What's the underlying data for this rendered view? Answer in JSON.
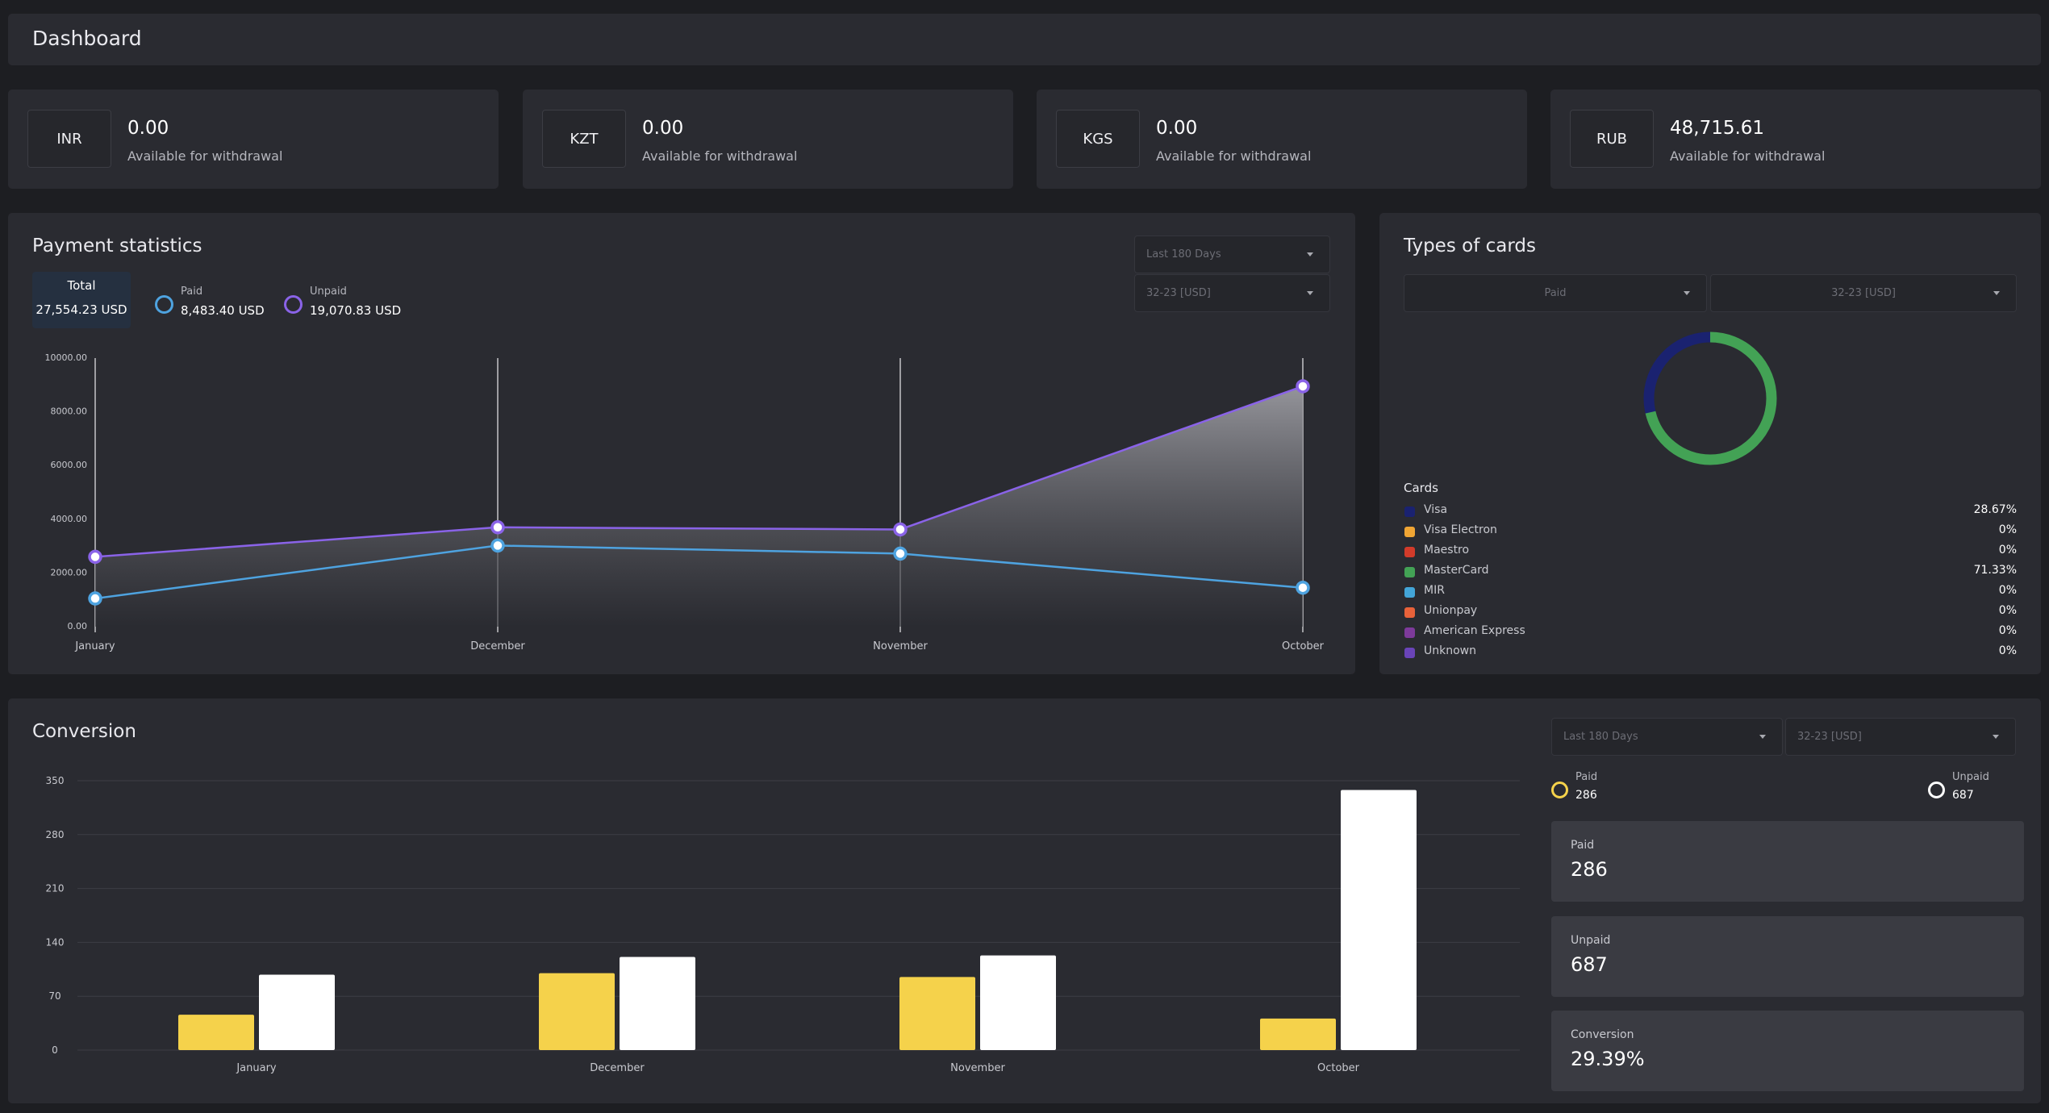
{
  "header": {
    "title": "Dashboard"
  },
  "balances": [
    {
      "code": "INR",
      "amount": "0.00",
      "label": "Available for withdrawal"
    },
    {
      "code": "KZT",
      "amount": "0.00",
      "label": "Available for withdrawal"
    },
    {
      "code": "KGS",
      "amount": "0.00",
      "label": "Available for withdrawal"
    },
    {
      "code": "RUB",
      "amount": "48,715.61",
      "label": "Available for withdrawal"
    }
  ],
  "payment_stats": {
    "title": "Payment statistics",
    "period_select": "Last 180 Days",
    "terminal_select": "32-23 [USD]",
    "total_label": "Total",
    "total_value": "27,554.23 USD",
    "paid_label": "Paid",
    "paid_value": "8,483.40 USD",
    "unpaid_label": "Unpaid",
    "unpaid_value": "19,070.83 USD",
    "paid_color": "#4ea3e0",
    "unpaid_color": "#8a63e8"
  },
  "card_types": {
    "title": "Types of cards",
    "status_select": "Paid",
    "terminal_select": "32-23 [USD]",
    "list_label": "Cards",
    "items": [
      {
        "name": "Visa",
        "percent": "28.67%",
        "value": 28.67,
        "color": "#1a2270"
      },
      {
        "name": "Visa Electron",
        "percent": "0%",
        "value": 0,
        "color": "#f0a534"
      },
      {
        "name": "Maestro",
        "percent": "0%",
        "value": 0,
        "color": "#d23b2a"
      },
      {
        "name": "MasterCard",
        "percent": "71.33%",
        "value": 71.33,
        "color": "#43a255"
      },
      {
        "name": "MIR",
        "percent": "0%",
        "value": 0,
        "color": "#43a5d8"
      },
      {
        "name": "Unionpay",
        "percent": "0%",
        "value": 0,
        "color": "#e8623a"
      },
      {
        "name": "American Express",
        "percent": "0%",
        "value": 0,
        "color": "#7d3a9a"
      },
      {
        "name": "Unknown",
        "percent": "0%",
        "value": 0,
        "color": "#6a44b8"
      }
    ]
  },
  "conversion": {
    "title": "Conversion",
    "period_select": "Last 180 Days",
    "terminal_select": "32-23 [USD]",
    "paid_label": "Paid",
    "paid_value": "286",
    "unpaid_label": "Unpaid",
    "unpaid_value": "687",
    "paid_color": "#f5d24b",
    "unpaid_color": "#ffffff",
    "box_paid_label": "Paid",
    "box_paid_value": "286",
    "box_unpaid_label": "Unpaid",
    "box_unpaid_value": "687",
    "box_conv_label": "Conversion",
    "box_conv_value": "29.39%"
  },
  "chart_data": [
    {
      "type": "area",
      "categories": [
        "January",
        "December",
        "November",
        "October"
      ],
      "series": [
        {
          "name": "Paid",
          "values": [
            1050,
            3020,
            2720,
            1450
          ]
        },
        {
          "name": "Unpaid",
          "values": [
            2600,
            3700,
            3620,
            8950
          ]
        }
      ],
      "yticks": [
        "10000.00",
        "8000.00",
        "6000.00",
        "4000.00",
        "2000.00",
        "0.00"
      ],
      "ylim": [
        0,
        10000
      ],
      "grid": true,
      "legend": "top-left"
    },
    {
      "type": "pie",
      "categories": [
        "Visa",
        "MasterCard"
      ],
      "values": [
        28.67,
        71.33
      ],
      "legend": "bottom"
    },
    {
      "type": "bar",
      "categories": [
        "January",
        "December",
        "November",
        "October"
      ],
      "series": [
        {
          "name": "Paid",
          "values": [
            46,
            100,
            95,
            41
          ]
        },
        {
          "name": "Unpaid",
          "values": [
            98,
            121,
            123,
            338
          ]
        }
      ],
      "yticks": [
        "350",
        "280",
        "210",
        "140",
        "70",
        "0"
      ],
      "ylim": [
        0,
        350
      ],
      "grid": true,
      "legend": "top-right"
    }
  ]
}
